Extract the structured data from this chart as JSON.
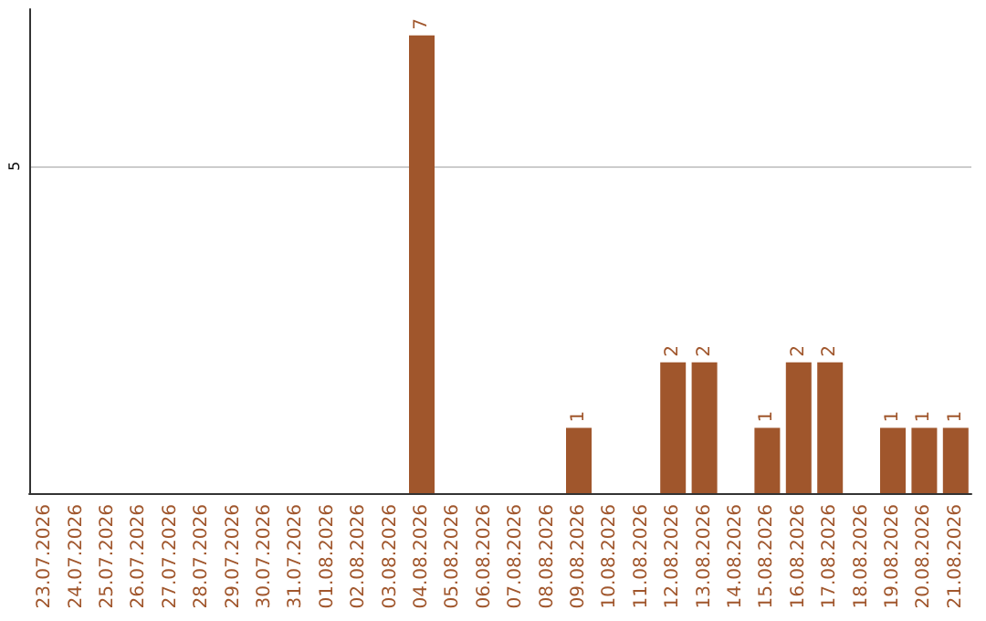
{
  "chart_data": {
    "type": "bar",
    "categories": [
      "23.07.2026",
      "24.07.2026",
      "25.07.2026",
      "26.07.2026",
      "27.07.2026",
      "28.07.2026",
      "29.07.2026",
      "30.07.2026",
      "31.07.2026",
      "01.08.2026",
      "02.08.2026",
      "03.08.2026",
      "04.08.2026",
      "05.08.2026",
      "06.08.2026",
      "07.08.2026",
      "08.08.2026",
      "09.08.2026",
      "10.08.2026",
      "11.08.2026",
      "12.08.2026",
      "13.08.2026",
      "14.08.2026",
      "15.08.2026",
      "16.08.2026",
      "17.08.2026",
      "18.08.2026",
      "19.08.2026",
      "20.08.2026",
      "21.08.2026"
    ],
    "values": [
      null,
      null,
      null,
      null,
      null,
      null,
      null,
      null,
      null,
      null,
      null,
      null,
      7,
      null,
      null,
      null,
      null,
      1,
      null,
      null,
      2,
      2,
      null,
      1,
      2,
      2,
      null,
      1,
      1,
      1
    ],
    "data_labels": true,
    "color": "#a0562c",
    "ylim": [
      0,
      7.4
    ],
    "yticks": [
      5
    ],
    "grid": "y"
  }
}
